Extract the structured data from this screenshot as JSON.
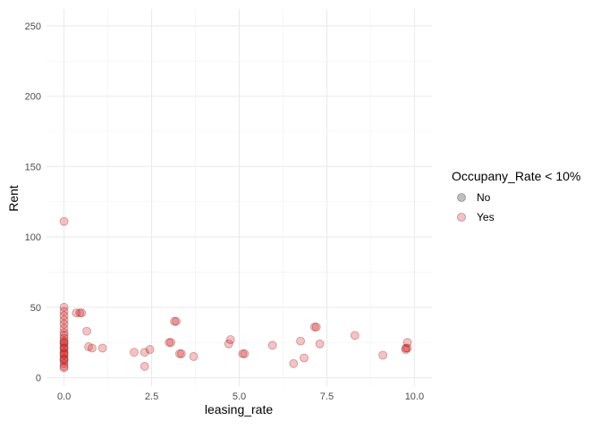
{
  "chart_data": {
    "type": "scatter",
    "xlabel": "leasing_rate",
    "ylabel": "Rent",
    "xlim": [
      -0.5,
      10.5
    ],
    "ylim": [
      -6,
      262
    ],
    "x_ticks": [
      0.0,
      2.5,
      5.0,
      7.5,
      10.0
    ],
    "x_tick_labels": [
      "0.0",
      "2.5",
      "5.0",
      "7.5",
      "10.0"
    ],
    "y_ticks": [
      0,
      50,
      100,
      150,
      200,
      250
    ],
    "y_tick_labels": [
      "0",
      "50",
      "100",
      "150",
      "200",
      "250"
    ],
    "grid": true,
    "legend": {
      "title": "Occupany_Rate < 10%",
      "position": "right",
      "entries": [
        {
          "label": "No",
          "color": "#000000"
        },
        {
          "label": "Yes",
          "color": "#ff0000"
        }
      ]
    },
    "point_alpha": 0.25,
    "series": [
      {
        "name": "Yes",
        "color": "#ff0000",
        "points": [
          {
            "x": 0.0,
            "y": 111
          },
          {
            "x": 0.0,
            "y": 50
          },
          {
            "x": 0.0,
            "y": 47
          },
          {
            "x": 0.0,
            "y": 44
          },
          {
            "x": 0.0,
            "y": 41
          },
          {
            "x": 0.0,
            "y": 38
          },
          {
            "x": 0.0,
            "y": 35
          },
          {
            "x": 0.0,
            "y": 32
          },
          {
            "x": 0.0,
            "y": 30
          },
          {
            "x": 0.0,
            "y": 28
          },
          {
            "x": 0.0,
            "y": 26
          },
          {
            "x": 0.0,
            "y": 24
          },
          {
            "x": 0.0,
            "y": 22
          },
          {
            "x": 0.0,
            "y": 20
          },
          {
            "x": 0.0,
            "y": 18
          },
          {
            "x": 0.0,
            "y": 16
          },
          {
            "x": 0.0,
            "y": 14
          },
          {
            "x": 0.0,
            "y": 12
          },
          {
            "x": 0.0,
            "y": 10
          },
          {
            "x": 0.0,
            "y": 8
          },
          {
            "x": 0.0,
            "y": 7
          },
          {
            "x": 0.0,
            "y": 25
          },
          {
            "x": 0.0,
            "y": 21
          },
          {
            "x": 0.0,
            "y": 17
          },
          {
            "x": 0.0,
            "y": 13
          },
          {
            "x": 0.35,
            "y": 46
          },
          {
            "x": 0.5,
            "y": 46
          },
          {
            "x": 0.45,
            "y": 46
          },
          {
            "x": 0.65,
            "y": 33
          },
          {
            "x": 0.7,
            "y": 22
          },
          {
            "x": 0.8,
            "y": 21
          },
          {
            "x": 1.1,
            "y": 21
          },
          {
            "x": 2.0,
            "y": 18
          },
          {
            "x": 2.3,
            "y": 18
          },
          {
            "x": 2.3,
            "y": 8
          },
          {
            "x": 2.45,
            "y": 20
          },
          {
            "x": 3.0,
            "y": 25
          },
          {
            "x": 3.05,
            "y": 25
          },
          {
            "x": 3.2,
            "y": 40
          },
          {
            "x": 3.15,
            "y": 40
          },
          {
            "x": 3.3,
            "y": 17
          },
          {
            "x": 3.35,
            "y": 17
          },
          {
            "x": 3.7,
            "y": 15
          },
          {
            "x": 4.7,
            "y": 24
          },
          {
            "x": 4.75,
            "y": 27
          },
          {
            "x": 5.1,
            "y": 17
          },
          {
            "x": 5.15,
            "y": 17
          },
          {
            "x": 5.95,
            "y": 23
          },
          {
            "x": 6.55,
            "y": 10
          },
          {
            "x": 6.75,
            "y": 26
          },
          {
            "x": 6.85,
            "y": 14
          },
          {
            "x": 7.15,
            "y": 36
          },
          {
            "x": 7.2,
            "y": 36
          },
          {
            "x": 7.3,
            "y": 24
          },
          {
            "x": 8.3,
            "y": 30
          },
          {
            "x": 9.1,
            "y": 16
          },
          {
            "x": 9.75,
            "y": 21
          },
          {
            "x": 9.8,
            "y": 21
          },
          {
            "x": 9.75,
            "y": 20
          },
          {
            "x": 9.8,
            "y": 25
          }
        ]
      }
    ]
  }
}
